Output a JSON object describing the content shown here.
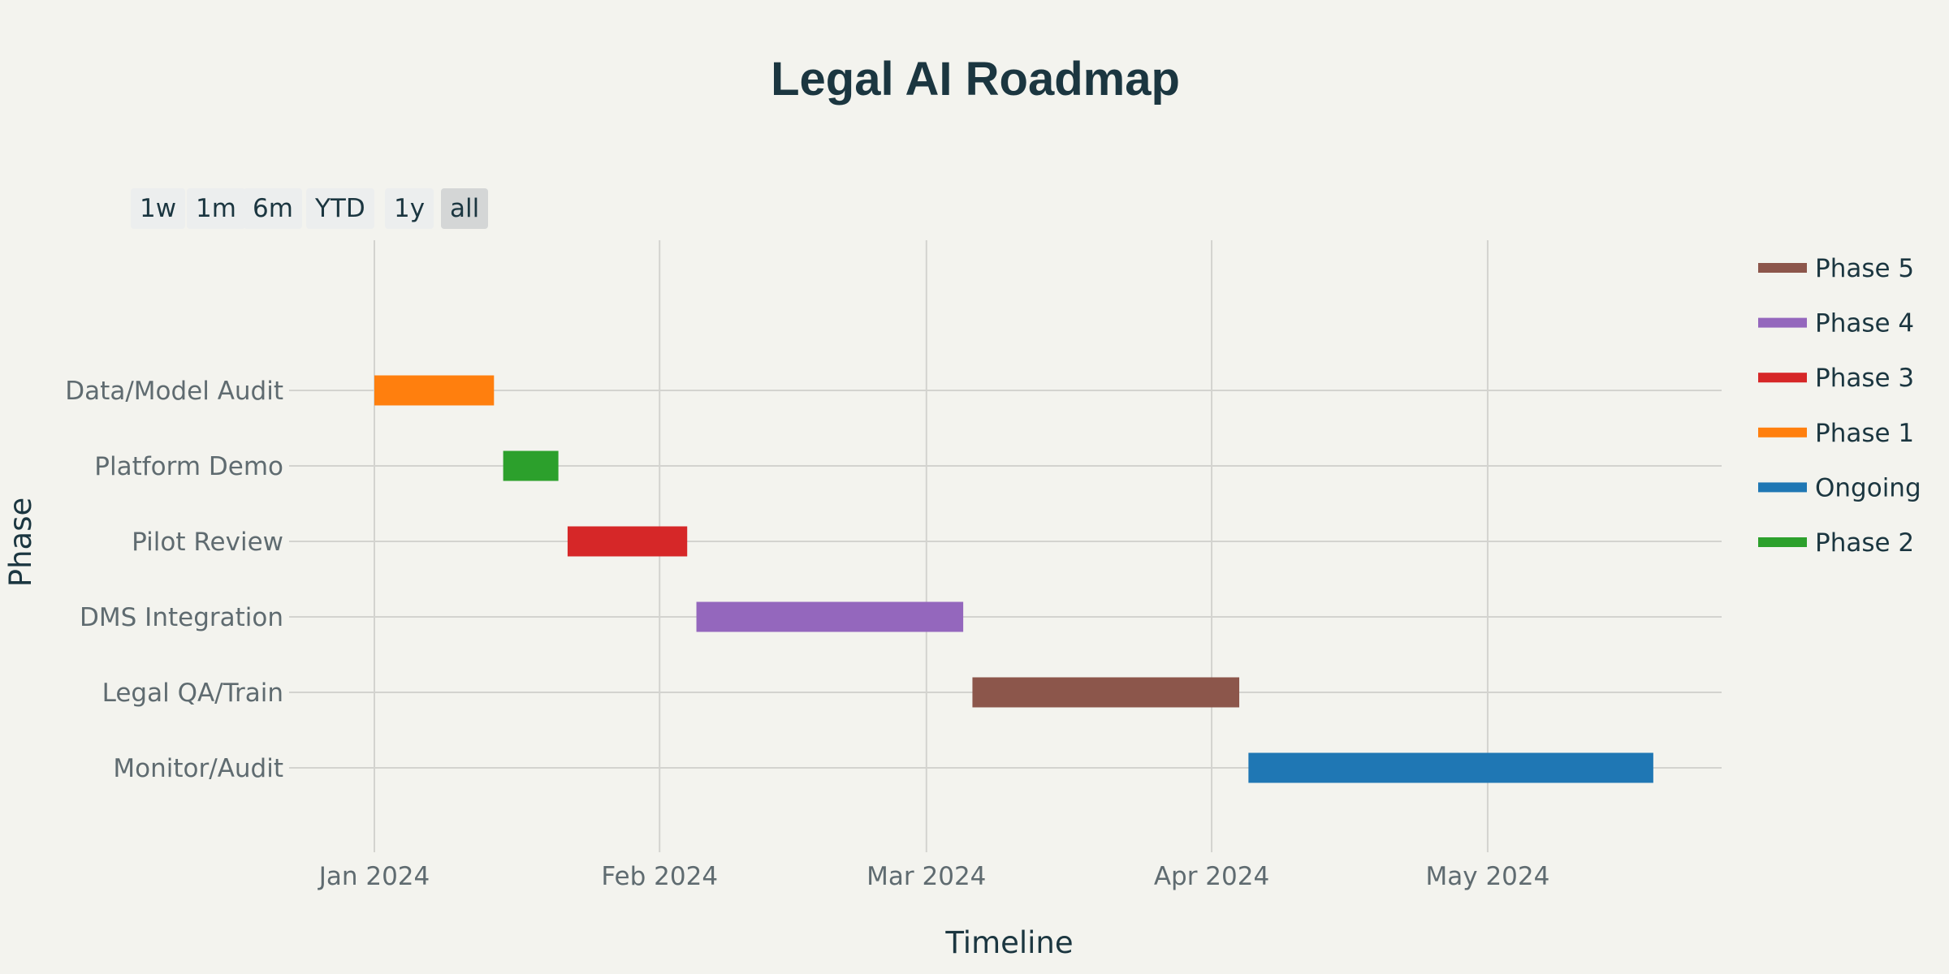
{
  "chart_data": {
    "type": "gantt",
    "title": "Legal AI Roadmap",
    "xlabel": "Timeline",
    "ylabel": "Phase",
    "x_axis_type": "date",
    "x_ticks": [
      "2024-01-01",
      "2024-02-01",
      "2024-03-01",
      "2024-04-01",
      "2024-05-01"
    ],
    "x_tick_labels": [
      "Jan 2024",
      "Feb 2024",
      "Mar 2024",
      "Apr 2024",
      "May 2024"
    ],
    "categories": [
      "Data/Model Audit",
      "Platform Demo",
      "Pilot Review",
      "DMS Integration",
      "Legal QA/Train",
      "Monitor/Audit"
    ],
    "tasks": [
      {
        "task": "Data/Model Audit",
        "start": "2024-01-01",
        "end": "2024-01-14",
        "phase": "Phase 1"
      },
      {
        "task": "Platform Demo",
        "start": "2024-01-15",
        "end": "2024-01-21",
        "phase": "Phase 2"
      },
      {
        "task": "Pilot Review",
        "start": "2024-01-22",
        "end": "2024-02-04",
        "phase": "Phase 3"
      },
      {
        "task": "DMS Integration",
        "start": "2024-02-05",
        "end": "2024-03-05",
        "phase": "Phase 4"
      },
      {
        "task": "Legal QA/Train",
        "start": "2024-03-06",
        "end": "2024-04-04",
        "phase": "Phase 5"
      },
      {
        "task": "Monitor/Audit",
        "start": "2024-04-05",
        "end": "2024-05-19",
        "phase": "Ongoing"
      }
    ],
    "legend": [
      {
        "name": "Phase 5",
        "color": "#8c564b"
      },
      {
        "name": "Phase 4",
        "color": "#9467bd"
      },
      {
        "name": "Phase 3",
        "color": "#d62728"
      },
      {
        "name": "Phase 1",
        "color": "#ff7f0e"
      },
      {
        "name": "Ongoing",
        "color": "#1f77b4"
      },
      {
        "name": "Phase 2",
        "color": "#2ca02c"
      }
    ],
    "legend_position": "right",
    "grid": true
  },
  "range_selector": {
    "buttons": [
      "1w",
      "1m",
      "6m",
      "YTD",
      "1y",
      "all"
    ],
    "active": "all"
  },
  "colors": {
    "background": "#f3f3ee",
    "title": "#1b3640",
    "tick": "#5f6b70",
    "grid": "#d3d3cf"
  }
}
